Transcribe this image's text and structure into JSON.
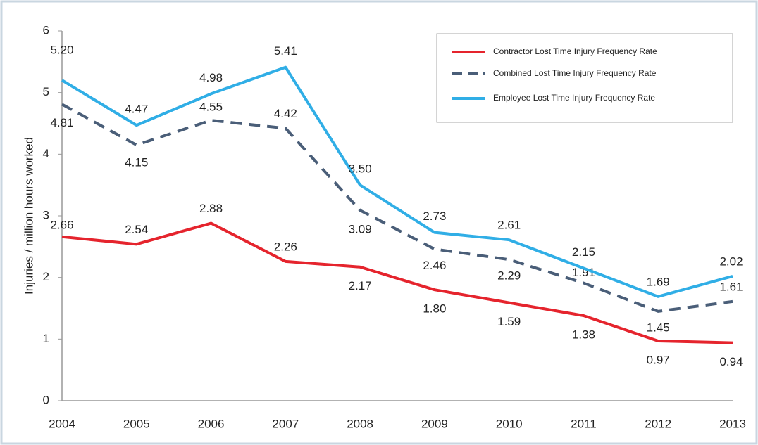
{
  "chart_data": {
    "type": "line",
    "y_label": "Injuries / million hours worked",
    "categories": [
      "2004",
      "2005",
      "2006",
      "2007",
      "2008",
      "2009",
      "2010",
      "2011",
      "2012",
      "2013"
    ],
    "series": [
      {
        "name": "Contractor Lost Time Injury Frequency Rate",
        "color": "#e5242d",
        "dashed": false,
        "values": [
          2.66,
          2.54,
          2.88,
          2.26,
          2.17,
          1.8,
          1.59,
          1.38,
          0.97,
          0.94
        ],
        "value_labels": [
          "2.66",
          "2.54",
          "2.88",
          "2.26",
          "2.17",
          "1.80",
          "1.59",
          "1.38",
          "0.97",
          "0.94"
        ]
      },
      {
        "name": "Combined Lost Time Injury Frequency Rate",
        "color": "#4a5e78",
        "dashed": true,
        "values": [
          4.81,
          4.15,
          4.55,
          4.42,
          3.09,
          2.46,
          2.29,
          1.91,
          1.45,
          1.61
        ],
        "value_labels": [
          "4.81",
          "4.15",
          "4.55",
          "4.42",
          "3.09",
          "2.46",
          "2.29",
          "1.91",
          "1.45",
          "1.61"
        ]
      },
      {
        "name": "Employee Lost Time Injury Frequency Rate",
        "color": "#30aee6",
        "dashed": false,
        "values": [
          5.2,
          4.47,
          4.98,
          5.41,
          3.5,
          2.73,
          2.61,
          2.15,
          1.69,
          2.02
        ],
        "value_labels": [
          "5.20",
          "4.47",
          "4.98",
          "5.41",
          "3.50",
          "2.73",
          "2.61",
          "2.15",
          "1.69",
          "2.02"
        ]
      }
    ],
    "ylim": [
      0,
      6
    ],
    "yticks": [
      0,
      1,
      2,
      3,
      4,
      5,
      6
    ],
    "grid": false,
    "legend": "upper right"
  }
}
